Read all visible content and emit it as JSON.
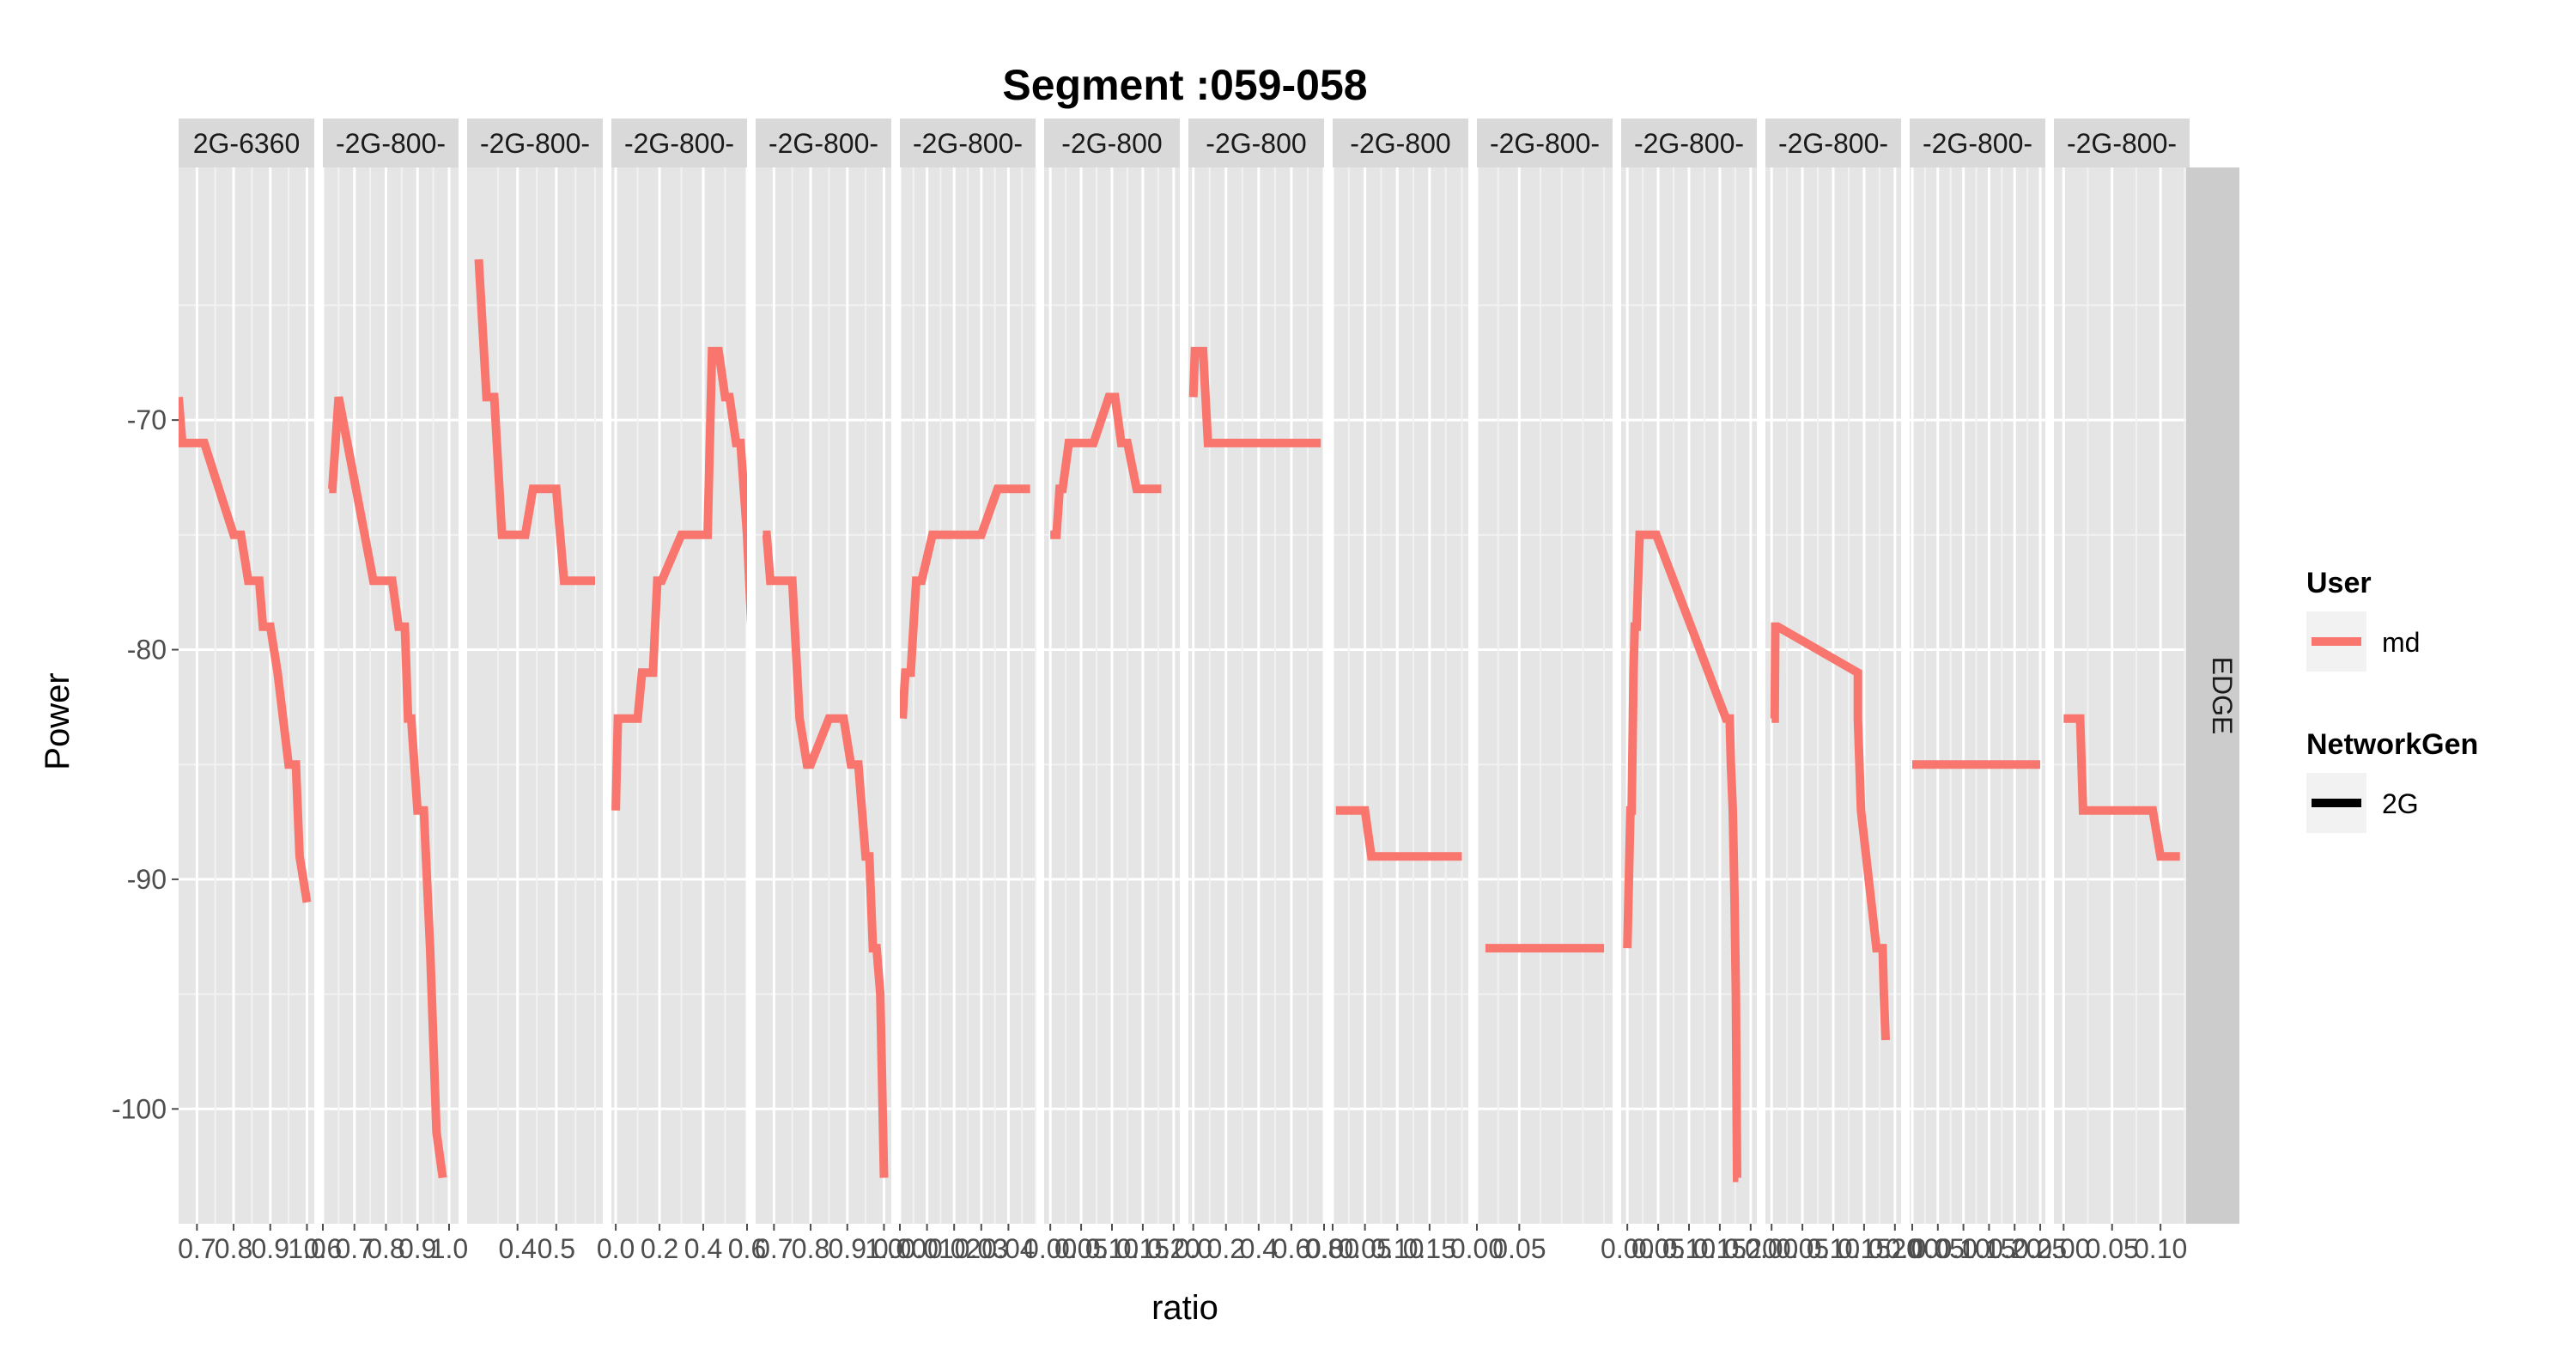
{
  "colors": {
    "series": "#F8766D",
    "panel_bg": "#E5E5E5",
    "strip_bg": "#D9D9D9",
    "grid_major": "#FFFFFF",
    "grid_minor": "#F2F2F2",
    "text_dark": "#1A1A1A",
    "tick_text": "#4D4D4D",
    "legend_key_bg": "#F2F2F2"
  },
  "chart_data": {
    "type": "line",
    "title": "Segment :059-058",
    "xlabel": "ratio",
    "ylabel": "Power",
    "ylim": [
      -105,
      -59
    ],
    "yticks": [
      -70,
      -80,
      -90,
      -100
    ],
    "yticks_minor": [
      -65,
      -75,
      -85,
      -95
    ],
    "row_strip": "EDGE",
    "grid": true,
    "legend": {
      "position": "right",
      "groups": [
        {
          "title": "User",
          "items": [
            {
              "label": "md",
              "color": "#F8766D",
              "key": "line"
            }
          ]
        },
        {
          "title": "NetworkGen",
          "items": [
            {
              "label": "2G",
              "color": "#000000",
              "key": "line"
            }
          ]
        }
      ]
    },
    "panels": [
      {
        "strip": "2G-6360",
        "xlim": [
          0.65,
          1.02
        ],
        "xticks": [
          0.7,
          0.8,
          0.9,
          1.0
        ],
        "xtick_labels": [
          "0.7",
          "0.8",
          "0.9",
          "1.0"
        ],
        "series": [
          {
            "x": [
              0.65,
              0.66,
              0.67,
              0.72,
              0.8,
              0.82,
              0.84,
              0.87,
              0.88,
              0.9,
              0.92,
              0.95,
              0.97,
              0.98,
              1.0
            ],
            "y": [
              -69,
              -71,
              -71,
              -71,
              -75,
              -75,
              -77,
              -77,
              -79,
              -79,
              -81,
              -85,
              -85,
              -89,
              -91
            ]
          }
        ]
      },
      {
        "strip": "-2G-800-",
        "xlim": [
          0.6,
          1.03
        ],
        "xticks": [
          0.6,
          0.7,
          0.8,
          0.9,
          1.0
        ],
        "xtick_labels": [
          "0.6",
          "0.7",
          "0.8",
          "0.9",
          "1.0"
        ],
        "series": [
          {
            "x": [
              0.62,
              0.63,
              0.65,
              0.76,
              0.82,
              0.84,
              0.86,
              0.87,
              0.88,
              0.9,
              0.92,
              0.94,
              0.96,
              0.98
            ],
            "y": [
              -73,
              -73,
              -69,
              -77,
              -77,
              -79,
              -79,
              -83,
              -83,
              -87,
              -87,
              -93,
              -101,
              -103
            ]
          }
        ]
      },
      {
        "strip": "-2G-800-",
        "xlim": [
          0.27,
          0.62
        ],
        "xticks": [
          0.4,
          0.5
        ],
        "xtick_labels": [
          "0.4",
          "0.5"
        ],
        "series": [
          {
            "x": [
              0.3,
              0.32,
              0.34,
              0.36,
              0.38,
              0.42,
              0.44,
              0.5,
              0.52,
              0.6
            ],
            "y": [
              -63,
              -69,
              -69,
              -75,
              -75,
              -75,
              -73,
              -73,
              -77,
              -77
            ]
          }
        ]
      },
      {
        "strip": "-2G-800-",
        "xlim": [
          -0.02,
          0.6
        ],
        "xticks": [
          0.0,
          0.2,
          0.4,
          0.6
        ],
        "xtick_labels": [
          "0.0",
          "0.2",
          "0.4",
          "0.6"
        ],
        "series": [
          {
            "x": [
              0.0,
              0.01,
              0.1,
              0.12,
              0.17,
              0.19,
              0.21,
              0.3,
              0.42,
              0.44,
              0.47,
              0.5,
              0.52,
              0.55,
              0.57,
              0.6,
              0.63
            ],
            "y": [
              -87,
              -83,
              -83,
              -81,
              -81,
              -77,
              -77,
              -75,
              -75,
              -67,
              -67,
              -69,
              -69,
              -71,
              -71,
              -75,
              -81
            ]
          }
        ]
      },
      {
        "strip": "-2G-800-",
        "xlim": [
          0.65,
          1.02
        ],
        "xticks": [
          0.7,
          0.8,
          0.9,
          1.0
        ],
        "xtick_labels": [
          "0.7",
          "0.8",
          "0.9",
          "1.0"
        ],
        "series": [
          {
            "x": [
              0.67,
              0.68,
              0.69,
              0.75,
              0.77,
              0.79,
              0.8,
              0.85,
              0.89,
              0.91,
              0.93,
              0.95,
              0.96,
              0.97,
              0.98,
              0.99,
              1.0
            ],
            "y": [
              -75,
              -75,
              -77,
              -77,
              -83,
              -85,
              -85,
              -83,
              -83,
              -85,
              -85,
              -89,
              -89,
              -93,
              -93,
              -95,
              -103
            ]
          }
        ]
      },
      {
        "strip": "-2G-800-",
        "xlim": [
          0.0,
          0.05
        ],
        "xticks": [
          0.0,
          0.01,
          0.02,
          0.03,
          0.04
        ],
        "xtick_labels": [
          "0.00",
          "0.01",
          "0.02",
          "0.03",
          "0.04"
        ],
        "series": [
          {
            "x": [
              0.001,
              0.002,
              0.004,
              0.006,
              0.008,
              0.012,
              0.016,
              0.02,
              0.03,
              0.036,
              0.044,
              0.048
            ],
            "y": [
              -83,
              -81,
              -81,
              -77,
              -77,
              -75,
              -75,
              -75,
              -75,
              -73,
              -73,
              -73
            ]
          }
        ]
      },
      {
        "strip": "-2G-800",
        "xlim": [
          -0.01,
          0.21
        ],
        "xticks": [
          0.0,
          0.05,
          0.1,
          0.15,
          0.2
        ],
        "xtick_labels": [
          "0.00",
          "0.05",
          "0.10",
          "0.15",
          "0.20"
        ],
        "series": [
          {
            "x": [
              0.0,
              0.01,
              0.015,
              0.02,
              0.03,
              0.04,
              0.05,
              0.07,
              0.095,
              0.105,
              0.115,
              0.125,
              0.14,
              0.16,
              0.18
            ],
            "y": [
              -75,
              -75,
              -73,
              -73,
              -71,
              -71,
              -71,
              -71,
              -69,
              -69,
              -71,
              -71,
              -73,
              -73,
              -73
            ]
          }
        ]
      },
      {
        "strip": "-2G-800",
        "xlim": [
          -0.03,
          0.8
        ],
        "xticks": [
          0.0,
          0.2,
          0.4,
          0.6,
          0.8
        ],
        "xtick_labels": [
          "0.0",
          "0.2",
          "0.4",
          "0.6",
          "0.8"
        ],
        "series": [
          {
            "x": [
              0.0,
              0.01,
              0.06,
              0.09,
              0.3,
              0.5,
              0.7,
              0.78
            ],
            "y": [
              -69,
              -67,
              -67,
              -71,
              -71,
              -71,
              -71,
              -71
            ]
          }
        ]
      },
      {
        "strip": "-2G-800",
        "xlim": [
          0.0,
          0.21
        ],
        "xticks": [
          0.0,
          0.05,
          0.1,
          0.15
        ],
        "xtick_labels": [
          "0.00",
          "0.05",
          "0.10",
          "0.15"
        ],
        "series": [
          {
            "x": [
              0.005,
              0.04,
              0.05,
              0.06,
              0.1,
              0.2
            ],
            "y": [
              -87,
              -87,
              -87,
              -89,
              -89,
              -89
            ]
          }
        ]
      },
      {
        "strip": "-2G-800-",
        "xlim": [
          0.0,
          0.16
        ],
        "xticks": [
          0.0,
          0.05
        ],
        "xtick_labels": [
          "0.00",
          "0.05"
        ],
        "series": [
          {
            "x": [
              0.01,
              0.05,
              0.1,
              0.15
            ],
            "y": [
              -93,
              -93,
              -93,
              -93
            ]
          }
        ]
      },
      {
        "strip": "-2G-800-",
        "xlim": [
          -0.01,
          0.21
        ],
        "xticks": [
          0.0,
          0.05,
          0.1,
          0.15,
          0.2
        ],
        "xtick_labels": [
          "0.00",
          "0.05",
          "0.10",
          "0.15",
          "0.20"
        ],
        "series": [
          {
            "x": [
              0.0,
              0.005,
              0.007,
              0.01,
              0.012,
              0.015,
              0.02,
              0.025,
              0.033,
              0.047,
              0.16,
              0.166,
              0.168,
              0.171,
              0.174,
              0.176,
              0.178,
              0.18
            ],
            "y": [
              -93,
              -87,
              -87,
              -81,
              -79,
              -79,
              -75,
              -75,
              -75,
              -75,
              -83,
              -83,
              -85,
              -87,
              -91,
              -95,
              -103,
              -103
            ]
          }
        ]
      },
      {
        "strip": "-2G-800-",
        "xlim": [
          -0.01,
          0.21
        ],
        "xticks": [
          0.0,
          0.05,
          0.1,
          0.15,
          0.2
        ],
        "xtick_labels": [
          "0.00",
          "0.05",
          "0.10",
          "0.15",
          "0.20"
        ],
        "series": [
          {
            "x": [
              0.0,
              0.005,
              0.006,
              0.01,
              0.14,
              0.14,
              0.145,
              0.17,
              0.18,
              0.182,
              0.185
            ],
            "y": [
              -83,
              -83,
              -79,
              -79,
              -81,
              -83,
              -87,
              -93,
              -93,
              -95,
              -97
            ]
          }
        ]
      },
      {
        "strip": "-2G-800-",
        "xlim": [
          -0.005,
          0.26
        ],
        "xticks": [
          0.0,
          0.05,
          0.1,
          0.15,
          0.2,
          0.25
        ],
        "xtick_labels": [
          "0.00",
          "0.05",
          "0.10",
          "0.15",
          "0.20",
          "0.25"
        ],
        "series": [
          {
            "x": [
              0.0,
              0.25
            ],
            "y": [
              -85,
              -85
            ]
          }
        ]
      },
      {
        "strip": "-2G-800-",
        "xlim": [
          -0.01,
          0.13
        ],
        "xticks": [
          0.0,
          0.05,
          0.1
        ],
        "xtick_labels": [
          "0.00",
          "0.05",
          "0.10"
        ],
        "series": [
          {
            "x": [
              0.0,
              0.01,
              0.017,
              0.02,
              0.04,
              0.08,
              0.092,
              0.1,
              0.12
            ],
            "y": [
              -83,
              -83,
              -83,
              -87,
              -87,
              -87,
              -87,
              -89,
              -89
            ]
          }
        ]
      }
    ]
  }
}
